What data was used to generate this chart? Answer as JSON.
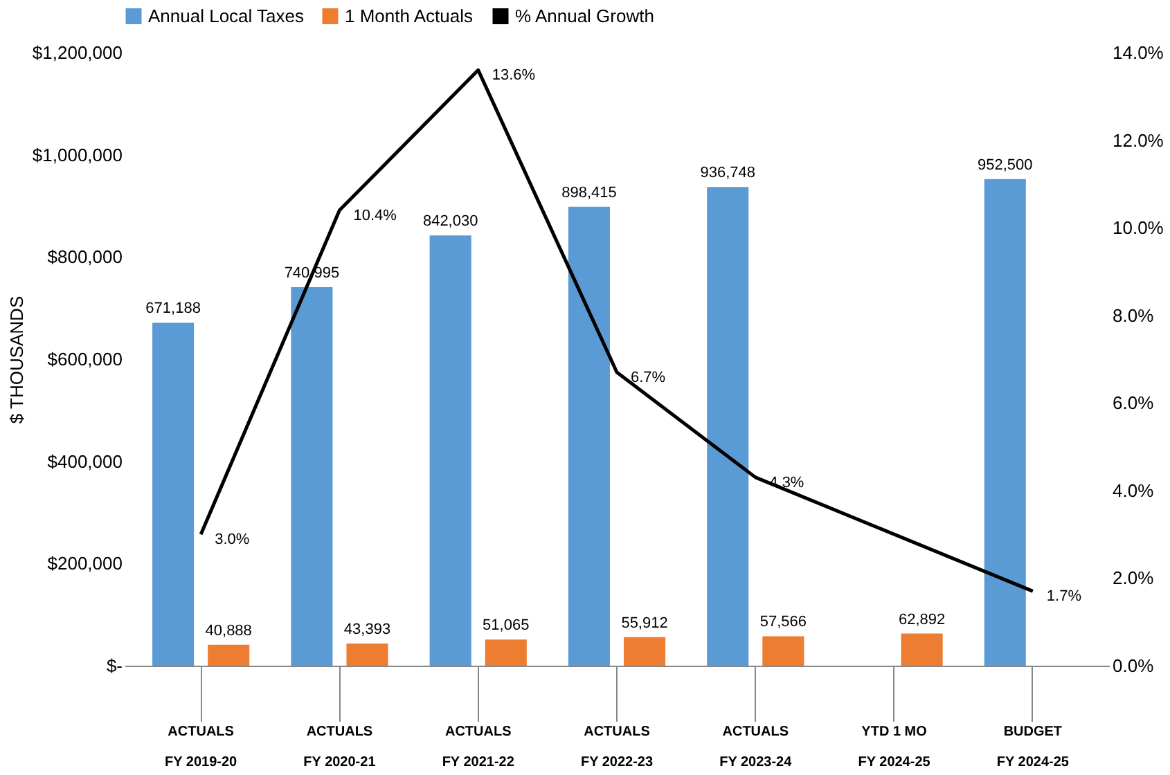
{
  "chart_data": {
    "type": "bar",
    "categories": [
      "ACTUALS\nFY 2019-20",
      "ACTUALS\nFY 2020-21",
      "ACTUALS\nFY 2021-22",
      "ACTUALS\nFY 2022-23",
      "ACTUALS\nFY 2023-24",
      "YTD 1 MO\nFY 2024-25",
      "BUDGET\nFY 2024-25"
    ],
    "ylabel": "$ THOUSANDS",
    "series": [
      {
        "name": "Annual Local Taxes",
        "color": "#5b9bd5",
        "values": [
          671188,
          740995,
          842030,
          898415,
          936748,
          null,
          952500
        ],
        "value_labels": [
          "671,188",
          "740,995",
          "842,030",
          "898,415",
          "936,748",
          null,
          "952,500"
        ]
      },
      {
        "name": "1 Month Actuals",
        "color": "#ed7d31",
        "values": [
          40888,
          43393,
          51065,
          55912,
          57566,
          62892,
          null
        ],
        "value_labels": [
          "40,888",
          "43,393",
          "51,065",
          "55,912",
          "57,566",
          "62,892",
          null
        ]
      },
      {
        "name": "% Annual Growth",
        "color": "#000000",
        "type": "line",
        "axis": "y2",
        "x": [
          "ACTUALS\nFY 2019-20",
          "ACTUALS\nFY 2020-21",
          "ACTUALS\nFY 2021-22",
          "ACTUALS\nFY 2022-23",
          "ACTUALS\nFY 2023-24",
          "BUDGET\nFY 2024-25"
        ],
        "values": [
          3.0,
          10.4,
          13.6,
          6.7,
          4.3,
          1.7
        ],
        "value_labels": [
          "3.0%",
          "10.4%",
          "13.6%",
          "6.7%",
          "4.3%",
          "1.7%"
        ]
      }
    ],
    "ylim": [
      0,
      1200000
    ],
    "yticks": [
      {
        "value": 0,
        "label": "$-"
      },
      {
        "value": 200000,
        "label": "$200,000"
      },
      {
        "value": 400000,
        "label": "$400,000"
      },
      {
        "value": 600000,
        "label": "$600,000"
      },
      {
        "value": 800000,
        "label": "$800,000"
      },
      {
        "value": 1000000,
        "label": "$1,000,000"
      },
      {
        "value": 1200000,
        "label": "$1,200,000"
      }
    ],
    "y2lim": [
      0,
      14
    ],
    "y2ticks": [
      {
        "value": 0,
        "label": "0.0%"
      },
      {
        "value": 2,
        "label": "2.0%"
      },
      {
        "value": 4,
        "label": "4.0%"
      },
      {
        "value": 6,
        "label": "6.0%"
      },
      {
        "value": 8,
        "label": "8.0%"
      },
      {
        "value": 10,
        "label": "10.0%"
      },
      {
        "value": 12,
        "label": "12.0%"
      },
      {
        "value": 14,
        "label": "14.0%"
      }
    ],
    "grid": false,
    "legend": "top"
  }
}
